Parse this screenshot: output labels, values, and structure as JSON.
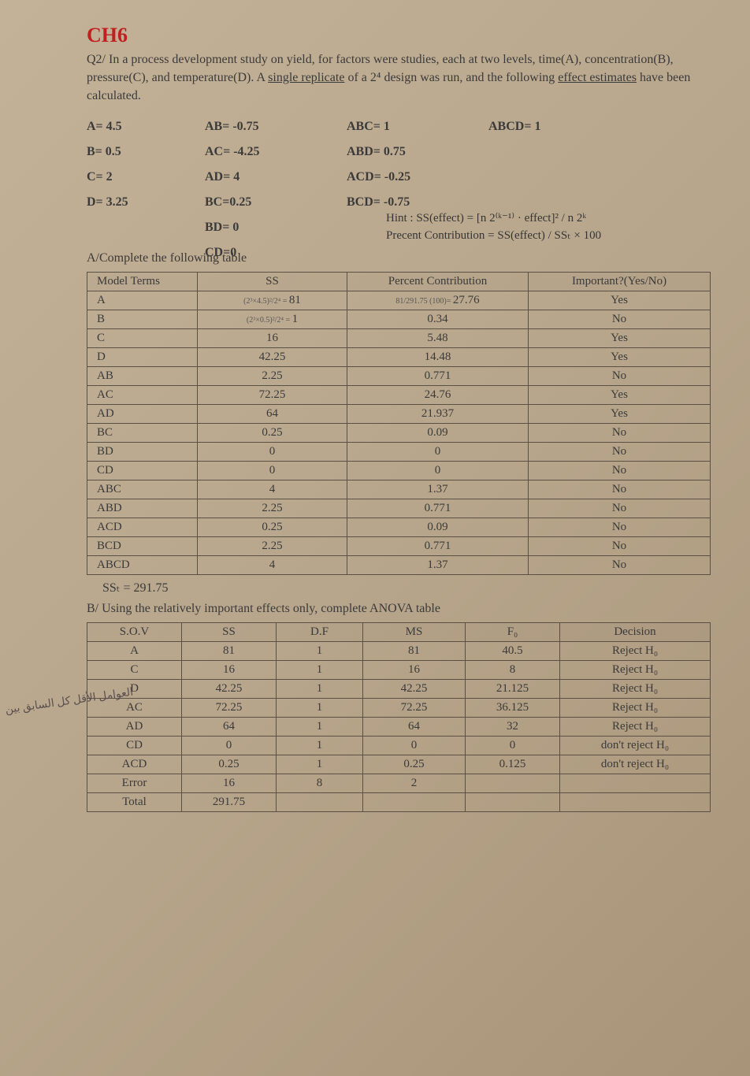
{
  "header": {
    "ch6": "CH6",
    "question_html": "Q2/ In a process development study on yield, for factors were studies, each at two levels, time(A), concentration(B), pressure(C), and temperature(D). A ",
    "question_underline1": "single replicate",
    "question_mid": " of a 2⁴ design was run, and the following ",
    "question_underline2": "effect estimates",
    "question_end": " have been calculated."
  },
  "effects": {
    "r1c1": "A= 4.5",
    "r1c2": "AB= -0.75",
    "r1c3": "ABC= 1",
    "r1c4": "ABCD= 1",
    "r2c1": "B= 0.5",
    "r2c2": "AC= -4.25",
    "r2c3": "ABD= 0.75",
    "r2c4": "",
    "r3c1": "C= 2",
    "r3c2": "AD= 4",
    "r3c3": "ACD= -0.25",
    "r3c4": "",
    "r4c1": "D= 3.25",
    "r4c2": "BC=0.25",
    "r4c3": "BCD= -0.75",
    "r4c4": "",
    "r5c1": "",
    "r5c2": "BD= 0",
    "r5c3": "",
    "r5c4": "",
    "r6c1": "",
    "r6c2": "CD=0",
    "r6c3": "",
    "r6c4": ""
  },
  "hints": {
    "line1": "Hint : SS(effect) = [n 2⁽ᵏ⁻¹⁾ · effect]² / n 2ᵏ",
    "line2": "Precent Contribution = SS(effect) / SSₜ × 100"
  },
  "partA": {
    "label": "A/Complete the following table",
    "headers": [
      "Model Terms",
      "SS",
      "Percent Contribution",
      "Important?(Yes/No)"
    ],
    "rows": [
      {
        "term": "A",
        "ss_note": "(2³×4.5)²/2⁴ =",
        "ss": "81",
        "pc_note": "81/291.75 (100)=",
        "pc": "27.76",
        "imp": "Yes"
      },
      {
        "term": "B",
        "ss_note": "(2³×0.5)²/2⁴ =",
        "ss": "1",
        "pc": "0.34",
        "imp": "No"
      },
      {
        "term": "C",
        "ss": "16",
        "pc": "5.48",
        "imp": "Yes"
      },
      {
        "term": "D",
        "ss": "42.25",
        "pc": "14.48",
        "imp": "Yes"
      },
      {
        "term": "AB",
        "ss": "2.25",
        "pc": "0.771",
        "imp": "No"
      },
      {
        "term": "AC",
        "ss": "72.25",
        "pc": "24.76",
        "imp": "Yes"
      },
      {
        "term": "AD",
        "ss": "64",
        "pc": "21.937",
        "imp": "Yes"
      },
      {
        "term": "BC",
        "ss": "0.25",
        "pc": "0.09",
        "imp": "No"
      },
      {
        "term": "BD",
        "ss": "0",
        "pc": "0",
        "imp": "No"
      },
      {
        "term": "CD",
        "ss": "0",
        "pc": "0",
        "imp": "No"
      },
      {
        "term": "ABC",
        "ss": "4",
        "pc": "1.37",
        "imp": "No"
      },
      {
        "term": "ABD",
        "ss": "2.25",
        "pc": "0.771",
        "imp": "No"
      },
      {
        "term": "ACD",
        "ss": "0.25",
        "pc": "0.09",
        "imp": "No"
      },
      {
        "term": "BCD",
        "ss": "2.25",
        "pc": "0.771",
        "imp": "No"
      },
      {
        "term": "ABCD",
        "ss": "4",
        "pc": "1.37",
        "imp": "No"
      }
    ],
    "sst": "SSₜ = 291.75"
  },
  "partB": {
    "label": "B/ Using the relatively important effects only, complete ANOVA table",
    "headers": [
      "S.O.V",
      "SS",
      "D.F",
      "MS",
      "F₀",
      "Decision"
    ],
    "rows": [
      {
        "sov": "A",
        "ss": "81",
        "df": "1",
        "ms": "81",
        "f": "40.5",
        "dec": "Reject H₀"
      },
      {
        "sov": "C",
        "ss": "16",
        "df": "1",
        "ms": "16",
        "f": "8",
        "dec": "Reject H₀"
      },
      {
        "sov": "D",
        "ss": "42.25",
        "df": "1",
        "ms": "42.25",
        "f": "21.125",
        "dec": "Reject H₀"
      },
      {
        "sov": "AC",
        "ss": "72.25",
        "df": "1",
        "ms": "72.25",
        "f": "36.125",
        "dec": "Reject H₀"
      },
      {
        "sov": "AD",
        "ss": "64",
        "df": "1",
        "ms": "64",
        "f": "32",
        "dec": "Reject H₀"
      },
      {
        "sov": "CD",
        "ss": "0",
        "df": "1",
        "ms": "0",
        "f": "0",
        "dec": "don't reject H₀"
      },
      {
        "sov": "ACD",
        "ss": "0.25",
        "df": "1",
        "ms": "0.25",
        "f": "0.125",
        "dec": "don't reject H₀"
      },
      {
        "sov": "Error",
        "ss": "16",
        "df": "8",
        "ms": "2",
        "f": "",
        "dec": ""
      },
      {
        "sov": "Total",
        "ss": "291.75",
        "df": "",
        "ms": "",
        "f": "",
        "dec": ""
      }
    ]
  },
  "side": {
    "text": "العوامل الأقل\nكل السابق\nبين"
  }
}
